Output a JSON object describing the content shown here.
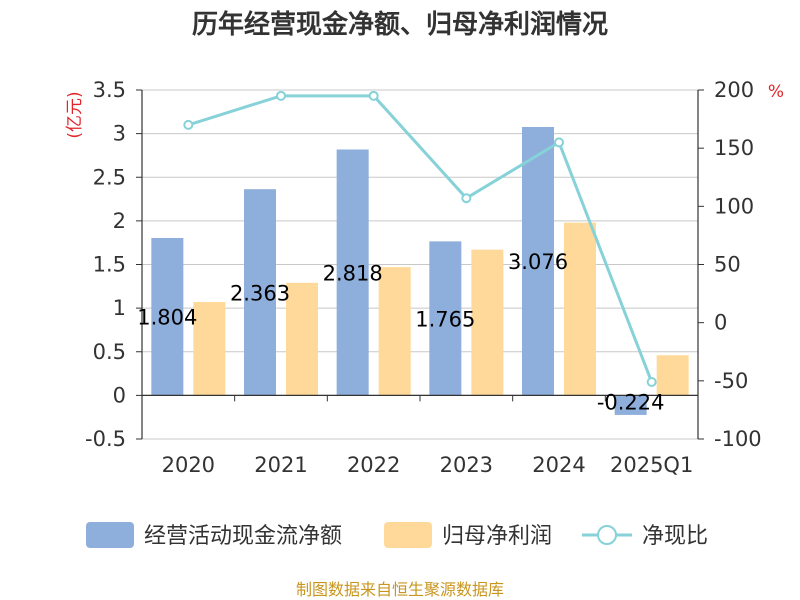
{
  "chart_data": {
    "type": "bar",
    "title": "历年经营现金净额、归母净利润情况",
    "categories": [
      "2020",
      "2021",
      "2022",
      "2023",
      "2024",
      "2025Q1"
    ],
    "left_axis": {
      "unit_label": "(亿元)",
      "ylim": [
        -0.5,
        3.5
      ],
      "ticks": [
        "-0.5",
        "0",
        "0.5",
        "1",
        "1.5",
        "2",
        "2.5",
        "3",
        "3.5"
      ]
    },
    "right_axis": {
      "unit_label": "%",
      "ylim": [
        -100,
        200
      ],
      "ticks": [
        "-100",
        "-50",
        "0",
        "50",
        "100",
        "150",
        "200"
      ]
    },
    "series": [
      {
        "name": "经营活动现金流净额",
        "kind": "bar",
        "axis": "left",
        "color": "#8eaedb",
        "values": [
          1.804,
          2.363,
          2.818,
          1.765,
          3.076,
          -0.224
        ],
        "labels": [
          "1.804",
          "2.363",
          "2.818",
          "1.765",
          "3.076",
          "-0.224"
        ]
      },
      {
        "name": "归母净利润",
        "kind": "bar",
        "axis": "left",
        "color": "#ffd999",
        "values": [
          1.07,
          1.29,
          1.47,
          1.67,
          1.98,
          0.46
        ]
      },
      {
        "name": "净现比",
        "kind": "line",
        "axis": "right",
        "color": "#86d2d8",
        "values": [
          170,
          195,
          195,
          107,
          155,
          -51
        ]
      }
    ],
    "grid": true,
    "legend_position": "bottom"
  },
  "source_note": "制图数据来自恒生聚源数据库"
}
